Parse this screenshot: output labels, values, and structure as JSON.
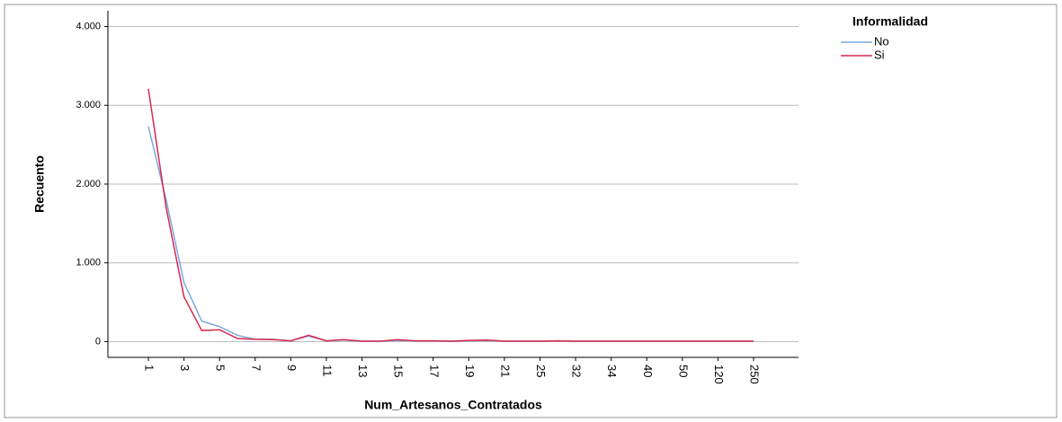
{
  "chart_data": {
    "type": "line",
    "legend_title": "Informalidad",
    "x_label": "Num_Artesanos_Contratados",
    "y_label": "Recuento",
    "categories": [
      "1",
      null,
      "3",
      null,
      "5",
      null,
      "7",
      null,
      "9",
      null,
      "11",
      null,
      "13",
      null,
      "15",
      null,
      "17",
      null,
      "19",
      null,
      "21",
      null,
      "25",
      null,
      "32",
      null,
      "34",
      null,
      "40",
      null,
      "50",
      null,
      "120",
      null,
      "250"
    ],
    "series": [
      {
        "name": "No",
        "color": "#7ba7e0",
        "values": [
          2730,
          1800,
          750,
          260,
          190,
          80,
          30,
          30,
          10,
          70,
          10,
          20,
          5,
          5,
          15,
          10,
          10,
          5,
          10,
          15,
          5,
          5,
          5,
          10,
          5,
          5,
          5,
          5,
          5,
          5,
          5,
          5,
          5,
          5,
          5
        ]
      },
      {
        "name": "Si",
        "color": "#d8294e",
        "values": [
          3210,
          1700,
          570,
          140,
          150,
          40,
          30,
          25,
          10,
          80,
          10,
          25,
          5,
          5,
          25,
          10,
          10,
          5,
          15,
          20,
          5,
          5,
          5,
          10,
          5,
          5,
          5,
          5,
          5,
          5,
          5,
          5,
          5,
          5,
          5
        ]
      }
    ],
    "ylim": [
      -200,
      4200
    ],
    "yticks": [
      0,
      {
        "value": 1000,
        "label": "1.000"
      },
      {
        "value": 2000,
        "label": "2.000"
      },
      {
        "value": 3000,
        "label": "3.000"
      },
      {
        "value": 4000,
        "label": "4.000"
      }
    ],
    "grid": true,
    "legend": "right"
  }
}
